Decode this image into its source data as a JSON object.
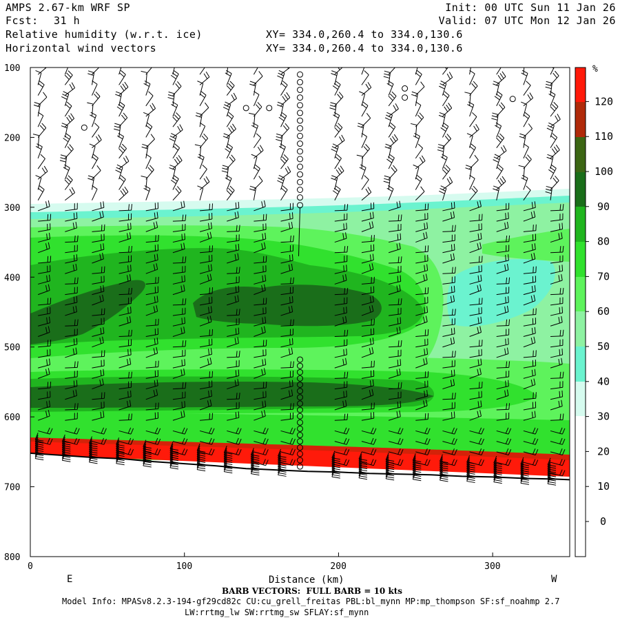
{
  "header": {
    "model": "AMPS 2.67-km WRF SP",
    "fcst_label": "Fcst:",
    "fcst_value": "31 h",
    "field": "Relative humidity (w.r.t. ice)",
    "vectors": "Horizontal wind vectors",
    "init": "Init: 00 UTC Sun 11 Jan 26",
    "valid": "Valid: 07 UTC Mon 12 Jan 26",
    "xy1": "XY= 334.0,260.4 to 334.0,130.6",
    "xy2": "XY= 334.0,260.4 to 334.0,130.6"
  },
  "footer": {
    "barb_note": "BARB VECTORS:  FULL BARB = 10 kts",
    "model_info": "Model Info: MPASv8.2.3-194-gf29cd82c CU:cu_grell_freitas PBL:bl_mynn MP:mp_thompson SF:sf_noahmp 2.7",
    "model_info2": "LW:rrtmg_lw SW:rrtmg_sw SFLAY:sf_mynn"
  },
  "chart_data": {
    "type": "heatmap",
    "xlabel": "Distance (km)",
    "ylabel": "",
    "x_range": [
      0,
      350
    ],
    "y_range": [
      100,
      800
    ],
    "x_ticks": [
      0,
      100,
      200,
      300
    ],
    "y_ticks": [
      100,
      200,
      300,
      400,
      500,
      600,
      700,
      800
    ],
    "x_end_labels": {
      "left": "E",
      "right": "W"
    },
    "colorbar": {
      "unit": "%",
      "labels": [
        0,
        10,
        20,
        30,
        40,
        50,
        60,
        70,
        80,
        90,
        100,
        110,
        120
      ],
      "colors": {
        "lt30": "#ffffff",
        "30_40": "#d6fbef",
        "40_50": "#6bf3cf",
        "50_60": "#8ef2a2",
        "60_70": "#5ef35c",
        "70_80": "#31e12e",
        "80_90": "#20b51f",
        "90_100": "#1a6e1a",
        "100_110": "#3c6614",
        "110_120": "#b02a0a",
        "gt120": "#ff1a0a"
      }
    },
    "terrain_surface_hpa": [
      [
        0,
        652
      ],
      [
        20,
        655
      ],
      [
        40,
        658
      ],
      [
        60,
        660
      ],
      [
        80,
        664
      ],
      [
        100,
        667
      ],
      [
        120,
        670
      ],
      [
        140,
        674
      ],
      [
        160,
        676
      ],
      [
        180,
        678
      ],
      [
        200,
        679
      ],
      [
        220,
        681
      ],
      [
        240,
        682
      ],
      [
        260,
        683
      ],
      [
        280,
        685
      ],
      [
        300,
        686
      ],
      [
        320,
        688
      ],
      [
        340,
        689
      ],
      [
        350,
        690
      ]
    ],
    "calm_column_km": 175
  }
}
